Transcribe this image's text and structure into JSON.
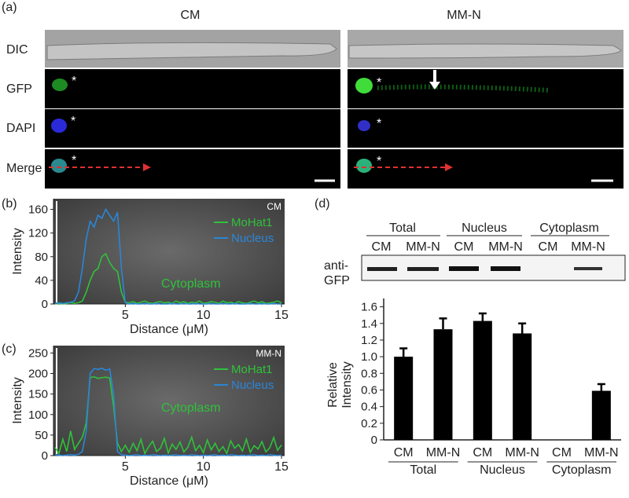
{
  "panel_labels": [
    "(a)",
    "(b)",
    "(c)",
    "(d)"
  ],
  "panel_a": {
    "columns": [
      "CM",
      "MM-N"
    ],
    "rows": [
      "DIC",
      "GFP",
      "DAPI",
      "Merge"
    ],
    "marker": "*"
  },
  "blot": {
    "groups": [
      "Total",
      "Nucleus",
      "Cytoplasm"
    ],
    "lanes": [
      "CM",
      "MM-N",
      "CM",
      "MM-N",
      "CM",
      "MM-N"
    ],
    "antibody": [
      "anti-",
      "GFP"
    ]
  },
  "chart_data": [
    {
      "type": "line",
      "corner_label": "CM",
      "annotation": "Cytoplasm",
      "ylabel": "Intensity",
      "xlabel": "Distance (μM)",
      "x": [
        0.5,
        0.75,
        1,
        1.25,
        1.5,
        1.75,
        2,
        2.25,
        2.5,
        2.75,
        3,
        3.25,
        3.5,
        3.75,
        4,
        4.25,
        4.5,
        4.75,
        5,
        5.25,
        5.5,
        5.75,
        6,
        6.25,
        6.5,
        6.75,
        7,
        7.25,
        7.5,
        7.75,
        8,
        8.25,
        8.5,
        8.75,
        9,
        9.25,
        9.5,
        9.75,
        10,
        10.25,
        10.5,
        10.75,
        11,
        11.25,
        11.5,
        11.75,
        12,
        12.25,
        12.5,
        12.75,
        13,
        13.25,
        13.5,
        13.75,
        14,
        14.25,
        14.5,
        14.75,
        15
      ],
      "series": [
        {
          "name": "MoHat1",
          "color": "#2fc23a",
          "values": [
            0,
            1,
            0,
            1,
            2,
            1,
            2,
            5,
            20,
            40,
            55,
            60,
            80,
            85,
            70,
            60,
            55,
            20,
            3,
            2,
            4,
            1,
            3,
            5,
            2,
            1,
            3,
            4,
            2,
            3,
            1,
            5,
            2,
            4,
            1,
            3,
            2,
            5,
            1,
            2,
            4,
            3,
            1,
            5,
            2,
            3,
            1,
            4,
            2,
            1,
            3,
            5,
            2,
            4,
            1,
            2,
            3,
            5,
            2
          ]
        },
        {
          "name": "Nucleus",
          "color": "#2a86d8",
          "values": [
            1,
            2,
            1,
            2,
            3,
            5,
            20,
            60,
            110,
            140,
            130,
            150,
            145,
            160,
            150,
            140,
            155,
            60,
            2,
            0,
            1,
            0,
            0,
            1,
            0,
            0,
            1,
            0,
            0,
            0,
            1,
            0,
            0,
            1,
            0,
            0,
            1,
            0,
            0,
            0,
            1,
            0,
            0,
            1,
            0,
            0,
            1,
            0,
            0,
            0,
            1,
            0,
            0,
            1,
            0,
            0,
            1,
            0,
            0
          ]
        }
      ],
      "xlim": [
        0.4,
        15.2
      ],
      "xticks": [
        5,
        10,
        15
      ],
      "ylim": [
        0,
        178
      ],
      "yticks": [
        0,
        40,
        80,
        120,
        160
      ],
      "legend": "upper right"
    },
    {
      "type": "line",
      "corner_label": "MM-N",
      "annotation": "Cytoplasm",
      "ylabel": "Intensity",
      "xlabel": "Distance (μM)",
      "x": [
        0.5,
        0.75,
        1,
        1.25,
        1.5,
        1.75,
        2,
        2.25,
        2.5,
        2.75,
        3,
        3.25,
        3.5,
        3.75,
        4,
        4.25,
        4.5,
        4.75,
        5,
        5.25,
        5.5,
        5.75,
        6,
        6.25,
        6.5,
        6.75,
        7,
        7.25,
        7.5,
        7.75,
        8,
        8.25,
        8.5,
        8.75,
        9,
        9.25,
        9.5,
        9.75,
        10,
        10.25,
        10.5,
        10.75,
        11,
        11.25,
        11.5,
        11.75,
        12,
        12.25,
        12.5,
        12.75,
        13,
        13.25,
        13.5,
        13.75,
        14,
        14.25,
        14.5,
        14.75,
        15
      ],
      "series": [
        {
          "name": "MoHat1",
          "color": "#2fc23a",
          "values": [
            20,
            5,
            40,
            10,
            60,
            15,
            30,
            45,
            80,
            190,
            192,
            188,
            190,
            191,
            189,
            120,
            30,
            10,
            25,
            8,
            30,
            12,
            40,
            5,
            22,
            35,
            10,
            18,
            42,
            6,
            28,
            15,
            33,
            9,
            20,
            45,
            12,
            25,
            7,
            38,
            14,
            30,
            10,
            22,
            5,
            36,
            18,
            27,
            11,
            40,
            8,
            24,
            16,
            34,
            9,
            19,
            44,
            13,
            26
          ]
        },
        {
          "name": "Nucleus",
          "color": "#2a86d8",
          "values": [
            2,
            1,
            0,
            1,
            2,
            1,
            3,
            10,
            60,
            200,
            212,
            210,
            213,
            208,
            211,
            150,
            10,
            2,
            1,
            0,
            1,
            2,
            0,
            1,
            0,
            2,
            1,
            0,
            1,
            0,
            1,
            2,
            0,
            1,
            0,
            2,
            1,
            0,
            1,
            0,
            1,
            2,
            0,
            1,
            0,
            2,
            1,
            0,
            1,
            0,
            1,
            2,
            0,
            1,
            0,
            2,
            1,
            0,
            1
          ]
        }
      ],
      "xlim": [
        0.4,
        15.2
      ],
      "xticks": [
        5,
        10,
        15
      ],
      "ylim": [
        0,
        268
      ],
      "yticks": [
        0,
        50,
        100,
        150,
        200,
        250
      ],
      "legend": "upper right"
    },
    {
      "type": "bar",
      "ylabel": [
        "Relative",
        "Intensity"
      ],
      "categories": [
        "CM",
        "MM-N",
        "CM",
        "MM-N",
        "CM",
        "MM-N"
      ],
      "groups": [
        "Total",
        "Nucleus",
        "Cytoplasm"
      ],
      "values": [
        1.0,
        1.33,
        1.43,
        1.28,
        null,
        0.59
      ],
      "errors": [
        0.1,
        0.13,
        0.09,
        0.12,
        null,
        0.08
      ],
      "color": "#000000",
      "ylim": [
        0,
        1.7
      ],
      "yticks": [
        0,
        0.2,
        0.4,
        0.6,
        0.8,
        {
          "value": 1,
          "label": "1.0"
        },
        1.2,
        1.4,
        1.6
      ]
    }
  ]
}
